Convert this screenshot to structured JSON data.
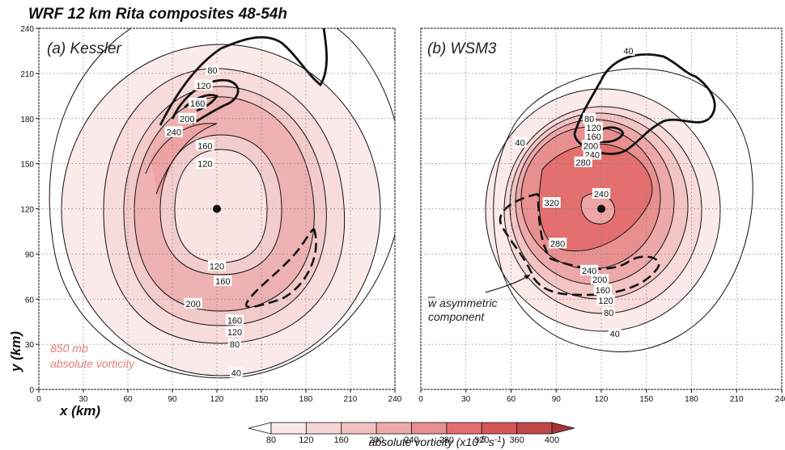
{
  "figure": {
    "title": "WRF 12 km Rita composites 48-54h",
    "xlabel": "x (km)",
    "ylabel": "y (km)"
  },
  "colorbar": {
    "label": "absolute vorticity (x10",
    "label_sup": "-5",
    "label_mid": " s",
    "label_sup2": "-1",
    "label_end": ")",
    "levels": [
      80,
      120,
      160,
      200,
      240,
      280,
      320,
      360,
      400
    ],
    "colors": [
      "#ffffff",
      "#fbe8e8",
      "#f7d5d5",
      "#f2c1c1",
      "#eda9a9",
      "#e88f8f",
      "#e26f6f",
      "#d45656",
      "#c04848",
      "#a53434"
    ]
  },
  "chart_data": [
    {
      "type": "contour",
      "panel_label": "(a) Kessler",
      "annotation": [
        "850 mb",
        "absolute vorticity"
      ],
      "xlim": [
        0,
        240
      ],
      "ylim": [
        0,
        240
      ],
      "x_ticks": [
        0,
        30,
        60,
        90,
        120,
        150,
        180,
        210,
        240
      ],
      "y_ticks": [
        0,
        30,
        60,
        90,
        120,
        150,
        180,
        210,
        240
      ],
      "grid": true,
      "center": [
        120,
        120
      ],
      "contour_labels": [
        {
          "text": "80",
          "x": 117,
          "y": 212
        },
        {
          "text": "120",
          "x": 111,
          "y": 202
        },
        {
          "text": "160",
          "x": 107,
          "y": 190
        },
        {
          "text": "200",
          "x": 100,
          "y": 180
        },
        {
          "text": "240",
          "x": 91,
          "y": 171
        },
        {
          "text": "160",
          "x": 112,
          "y": 162
        },
        {
          "text": "120",
          "x": 112,
          "y": 150
        },
        {
          "text": "120",
          "x": 120,
          "y": 82
        },
        {
          "text": "160",
          "x": 124,
          "y": 72
        },
        {
          "text": "200",
          "x": 104,
          "y": 57
        },
        {
          "text": "160",
          "x": 132,
          "y": 46
        },
        {
          "text": "120",
          "x": 132,
          "y": 38
        },
        {
          "text": "80",
          "x": 132,
          "y": 30
        },
        {
          "text": "40",
          "x": 133,
          "y": 11
        }
      ]
    },
    {
      "type": "contour",
      "panel_label": "(b) WSM3",
      "annotation": [
        "w asymmetric",
        "component"
      ],
      "xlim": [
        0,
        240
      ],
      "ylim": [
        0,
        240
      ],
      "x_ticks": [
        0,
        30,
        60,
        90,
        120,
        150,
        180,
        210,
        240
      ],
      "y_ticks": [
        0,
        30,
        60,
        90,
        120,
        150,
        180,
        210,
        240
      ],
      "grid": true,
      "center": [
        120,
        120
      ],
      "contour_labels": [
        {
          "text": "40",
          "x": 138,
          "y": 225
        },
        {
          "text": "40",
          "x": 66,
          "y": 164
        },
        {
          "text": "80",
          "x": 112,
          "y": 180
        },
        {
          "text": "120",
          "x": 115,
          "y": 174
        },
        {
          "text": "160",
          "x": 115,
          "y": 168
        },
        {
          "text": "200",
          "x": 113,
          "y": 162
        },
        {
          "text": "240",
          "x": 114,
          "y": 156
        },
        {
          "text": "280",
          "x": 108,
          "y": 151
        },
        {
          "text": "240",
          "x": 120,
          "y": 130
        },
        {
          "text": "320",
          "x": 87,
          "y": 124
        },
        {
          "text": "280",
          "x": 91,
          "y": 97
        },
        {
          "text": "240",
          "x": 112,
          "y": 79
        },
        {
          "text": "200",
          "x": 119,
          "y": 73
        },
        {
          "text": "160",
          "x": 121,
          "y": 66
        },
        {
          "text": "120",
          "x": 123,
          "y": 59
        },
        {
          "text": "80",
          "x": 125,
          "y": 51
        },
        {
          "text": "40",
          "x": 129,
          "y": 37
        }
      ]
    }
  ]
}
